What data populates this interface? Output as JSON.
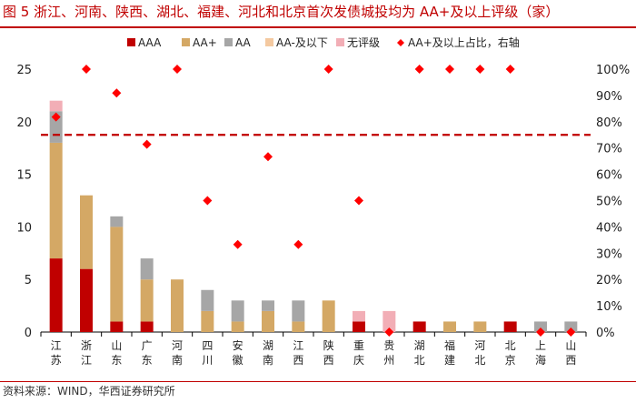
{
  "header": {
    "title": "图 5  浙江、河南、陕西、湖北、福建、河北和北京首次发债城投均为 AA+及以上评级（家）"
  },
  "footer": {
    "source": "资料来源：WIND，华西证券研究所"
  },
  "colors": {
    "AAA": "#c00000",
    "AA+": "#d4a865",
    "AA": "#a6a6a6",
    "AA-及以下": "#f4c9a0",
    "无评级": "#f2aeb6",
    "marker": "#ff0000",
    "refline": "#c00000"
  },
  "chart_data": {
    "type": "bar",
    "stacked": true,
    "categories": [
      "江苏",
      "浙江",
      "山东",
      "广东",
      "河南",
      "四川",
      "安徽",
      "湖南",
      "江西",
      "陕西",
      "重庆",
      "贵州",
      "湖北",
      "福建",
      "河北",
      "北京",
      "上海",
      "山西"
    ],
    "series": [
      {
        "name": "AAA",
        "values": [
          7,
          6,
          1,
          1,
          0,
          0,
          0,
          0,
          0,
          0,
          1,
          0,
          1,
          0,
          0,
          1,
          0,
          0
        ]
      },
      {
        "name": "AA+",
        "values": [
          11,
          7,
          9,
          4,
          5,
          2,
          1,
          2,
          1,
          3,
          0,
          0,
          0,
          1,
          1,
          0,
          0,
          0
        ]
      },
      {
        "name": "AA",
        "values": [
          3,
          0,
          1,
          2,
          0,
          2,
          2,
          1,
          2,
          0,
          0,
          0,
          0,
          0,
          0,
          0,
          1,
          1
        ]
      },
      {
        "name": "AA-及以下",
        "values": [
          0,
          0,
          0,
          0,
          0,
          0,
          0,
          0,
          0,
          0,
          0,
          0,
          0,
          0,
          0,
          0,
          0,
          0
        ]
      },
      {
        "name": "无评级",
        "values": [
          1,
          0,
          0,
          0,
          0,
          0,
          0,
          0,
          0,
          0,
          1,
          2,
          0,
          0,
          0,
          0,
          0,
          0
        ]
      }
    ],
    "line_series": {
      "name": "AA+及以上占比，右轴",
      "axis": "right",
      "values": [
        0.818,
        1.0,
        0.909,
        0.714,
        1.0,
        0.5,
        0.333,
        0.667,
        0.333,
        1.0,
        0.5,
        0.0,
        1.0,
        1.0,
        1.0,
        1.0,
        0.0,
        0.0
      ]
    },
    "reference_line": {
      "axis": "right",
      "value": 0.75,
      "style": "dashed"
    },
    "ylim": [
      0,
      25
    ],
    "yticks": [
      "0",
      "5",
      "10",
      "15",
      "20",
      "25"
    ],
    "y2lim": [
      0,
      1
    ],
    "y2ticks": [
      "0%",
      "10%",
      "20%",
      "30%",
      "40%",
      "50%",
      "60%",
      "70%",
      "80%",
      "90%",
      "100%"
    ],
    "legend": [
      "AAA",
      "AA+",
      "AA",
      "AA-及以下",
      "无评级",
      "AA+及以上占比，右轴"
    ],
    "legend_position": "top"
  }
}
